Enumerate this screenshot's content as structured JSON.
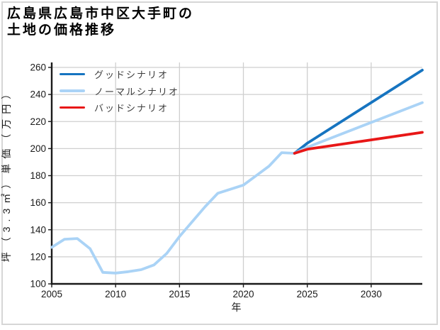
{
  "figure": {
    "title_line1": "広島県広島市中区大手町の",
    "title_line2": "土地の価格推移"
  },
  "chart_data": {
    "type": "line",
    "title": "広島県広島市中区大手町の土地の価格推移",
    "xlabel": "年",
    "ylabel": "坪（3.3㎡）単価（万円）",
    "xlim": [
      2005,
      2034
    ],
    "ylim": [
      100,
      260
    ],
    "xticks": [
      2005,
      2010,
      2015,
      2020,
      2025,
      2030
    ],
    "yticks": [
      100,
      120,
      140,
      160,
      180,
      200,
      220,
      240,
      260
    ],
    "grid": true,
    "legend_position": "upper-left",
    "colors": {
      "grid": "#cfcfcf",
      "axis": "#1a1a1a",
      "tick_text": "#1a1a1a"
    },
    "history": {
      "color": "#aad3f6",
      "years": [
        2005,
        2006,
        2007,
        2008,
        2009,
        2010,
        2011,
        2012,
        2013,
        2014,
        2015,
        2016,
        2017,
        2018,
        2019,
        2020,
        2021,
        2022,
        2023,
        2024
      ],
      "values": [
        127,
        133,
        133.5,
        126,
        108.5,
        108,
        109,
        110.5,
        114,
        122.5,
        135,
        146,
        157,
        167,
        170,
        173,
        180,
        187,
        197,
        196.5
      ]
    },
    "forecasts": [
      {
        "id": "good",
        "label": "グッドシナリオ",
        "color": "#1674c0",
        "years": [
          2024,
          2025,
          2034
        ],
        "values": [
          196.5,
          204,
          258
        ]
      },
      {
        "id": "normal",
        "label": "ノーマルシナリオ",
        "color": "#aad3f6",
        "years": [
          2024,
          2025,
          2034
        ],
        "values": [
          196.5,
          201,
          234
        ]
      },
      {
        "id": "bad",
        "label": "バッドシナリオ",
        "color": "#e81717",
        "years": [
          2024,
          2025,
          2034
        ],
        "values": [
          196.5,
          199.5,
          212
        ]
      }
    ]
  }
}
